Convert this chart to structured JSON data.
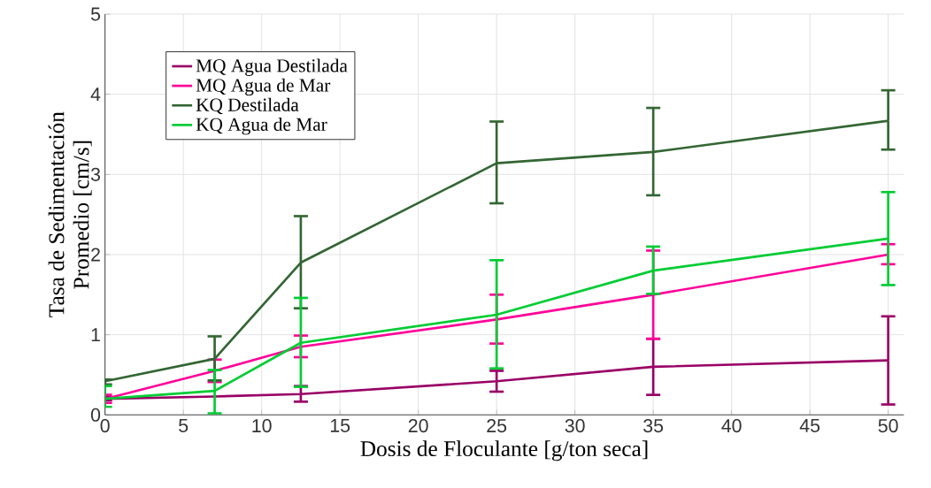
{
  "chart_data": {
    "type": "line",
    "xlabel": "Dosis de Floculante [g/ton seca]",
    "ylabel": "Tasa de Sedimentación\nPromedio [cm/s]",
    "x": [
      0,
      7,
      12.5,
      25,
      35,
      50
    ],
    "series": [
      {
        "name": "MQ Agua Destilada",
        "color": "#990066",
        "values": [
          0.2,
          0.23,
          0.26,
          0.42,
          0.6,
          0.68
        ],
        "errors": [
          [
            0.18,
            0.22
          ],
          null,
          [
            0.165,
            0.36
          ],
          [
            0.29,
            0.55
          ],
          [
            0.25,
            0.95
          ],
          [
            0.13,
            1.23
          ]
        ]
      },
      {
        "name": "MQ Agua de Mar",
        "color": "#ff0099",
        "values": [
          0.2,
          0.55,
          0.85,
          1.19,
          1.5,
          2.0
        ],
        "errors": [
          [
            0.15,
            0.25
          ],
          [
            0.41,
            0.69
          ],
          [
            0.72,
            0.99
          ],
          [
            0.89,
            1.5
          ],
          [
            0.95,
            2.05
          ],
          [
            1.88,
            2.13
          ]
        ]
      },
      {
        "name": "KQ Destilada",
        "color": "#336633",
        "values": [
          0.42,
          0.7,
          1.9,
          3.14,
          3.28,
          3.67
        ],
        "errors": [
          [
            0.38,
            0.44
          ],
          [
            0.43,
            0.98
          ],
          [
            1.33,
            2.48
          ],
          [
            2.64,
            3.66
          ],
          [
            2.74,
            3.83
          ],
          [
            3.31,
            4.05
          ]
        ]
      },
      {
        "name": "KQ Agua de Mar",
        "color": "#00cc33",
        "values": [
          0.2,
          0.3,
          0.9,
          1.25,
          1.8,
          2.2
        ],
        "errors": [
          [
            0.1,
            0.36
          ],
          [
            0.02,
            0.56
          ],
          [
            0.35,
            1.46
          ],
          [
            0.58,
            1.93
          ],
          [
            1.51,
            2.1
          ],
          [
            1.62,
            2.78
          ]
        ]
      }
    ],
    "xlim": [
      0,
      51
    ],
    "ylim": [
      0,
      5
    ],
    "xticks": [
      0,
      5,
      10,
      15,
      20,
      25,
      30,
      35,
      40,
      45,
      50
    ],
    "yticks": [
      0,
      1,
      2,
      3,
      4,
      5
    ],
    "grid": true,
    "legend": "top left",
    "marker": "none",
    "line_style": "solid"
  }
}
